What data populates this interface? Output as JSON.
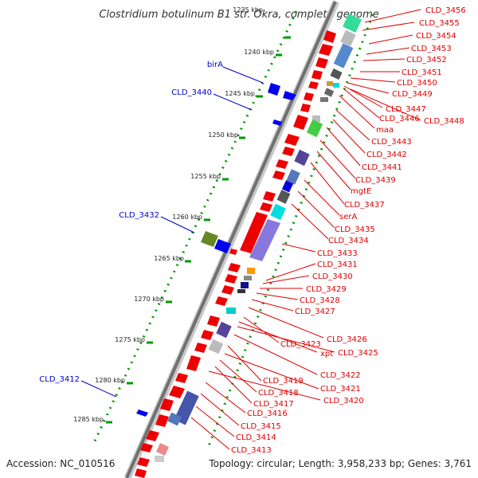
{
  "title": "Clostridium botulinum B1 str. Okra, complete genome",
  "footer": {
    "accession": "Accession: NC_010516",
    "topology": "Topology: circular; Length: 3,958,233 bp; Genes: 3,761"
  },
  "ticks": [
    "1235 kbp",
    "1240 kbp",
    "1245 kbp",
    "1250 kbp",
    "1255 kbp",
    "1260 kbp",
    "1265 kbp",
    "1270 kbp",
    "1275 kbp",
    "1280 kbp",
    "1285 kbp"
  ],
  "right_labels": [
    "CLD_3456",
    "CLD_3455",
    "CLD_3454",
    "CLD_3453",
    "CLD_3452",
    "CLD_3451",
    "CLD_3450",
    "CLD_3449",
    "CLD_3447",
    "CLD_3446",
    "CLD_3448",
    "maa",
    "CLD_3443",
    "CLD_3442",
    "CLD_3441",
    "CLD_3439",
    "mgtE",
    "CLD_3437",
    "serA",
    "CLD_3435",
    "CLD_3434",
    "CLD_3433",
    "CLD_3431",
    "CLD_3430",
    "CLD_3429",
    "CLD_3428",
    "CLD_3427",
    "CLD_3426",
    "CLD_3423",
    "xpt",
    "CLD_3425",
    "CLD_3422",
    "CLD_3419",
    "CLD_3421",
    "CLD_3418",
    "CLD_3417",
    "CLD_3420",
    "CLD_3416",
    "CLD_3415",
    "CLD_3414",
    "CLD_3413"
  ],
  "left_labels": [
    "birA",
    "CLD_3440",
    "CLD_3432",
    "CLD_3412"
  ],
  "colors": {
    "red": "#ee0000",
    "blue": "#0000ee",
    "label_red": "#e00000",
    "label_blue": "#0000cc",
    "backbone": "#808080",
    "tick_green": "#009900"
  }
}
